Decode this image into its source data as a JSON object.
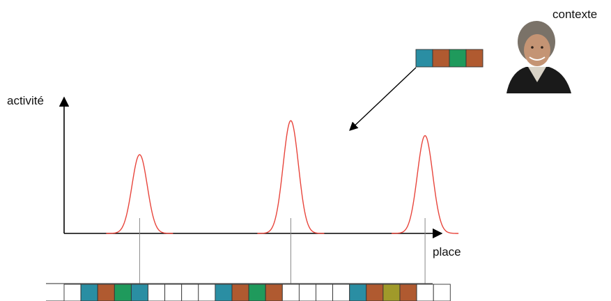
{
  "labels": {
    "y_axis": "activité",
    "x_axis": "place",
    "context": "contexte"
  },
  "colors": {
    "teal": "#2a8ea3",
    "brown": "#b05a30",
    "green": "#1f9a5c",
    "olive": "#a09a2a",
    "empty": "#ffffff",
    "curve": "#e8453c"
  },
  "context_pattern": [
    "teal",
    "brown",
    "green",
    "brown"
  ],
  "tape_cells": [
    "empty",
    "teal",
    "brown",
    "green",
    "teal",
    "empty",
    "empty",
    "empty",
    "empty",
    "teal",
    "brown",
    "green",
    "brown",
    "empty",
    "empty",
    "empty",
    "empty",
    "teal",
    "brown",
    "olive",
    "brown",
    "empty",
    "empty"
  ],
  "activity_peaks": [
    {
      "place_cell": 4,
      "height": 0.58
    },
    {
      "place_cell": 13,
      "height": 0.83
    },
    {
      "place_cell": 21,
      "height": 0.72
    }
  ],
  "icons": {
    "portrait": "person-photo"
  }
}
